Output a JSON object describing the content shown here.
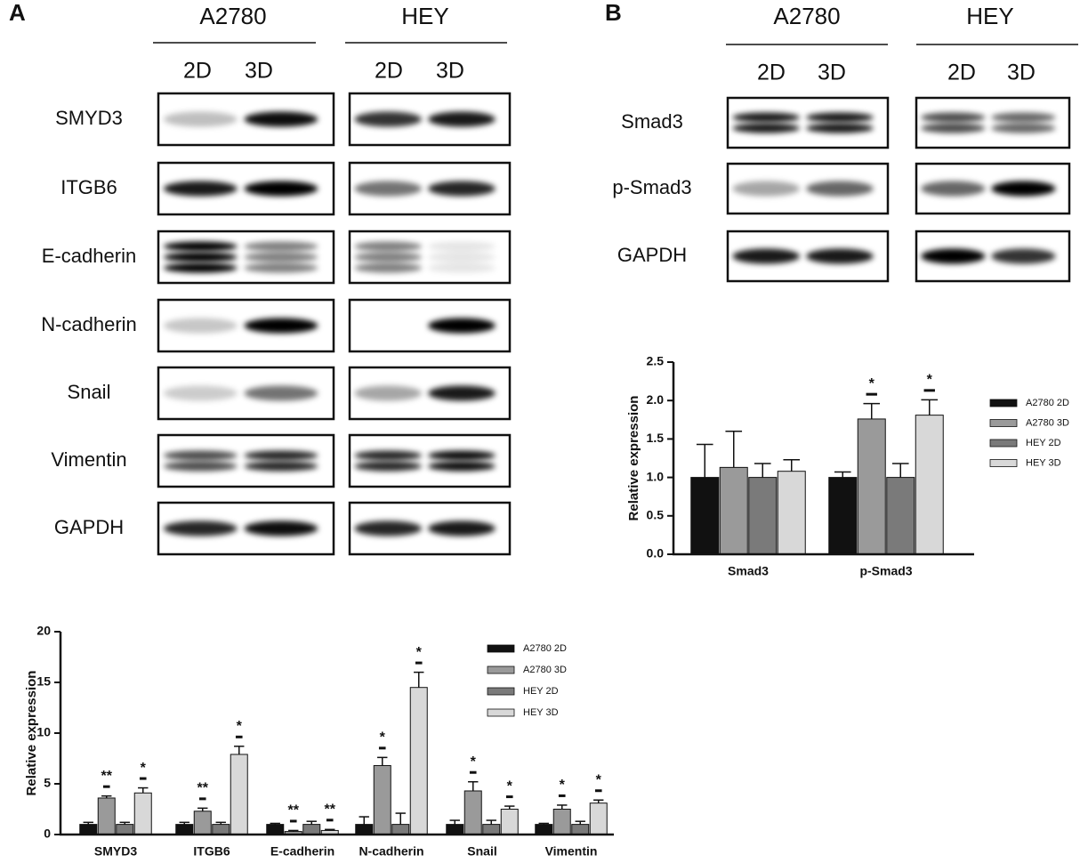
{
  "panels": {
    "A": {
      "label": "A",
      "cell_lines": [
        "A2780",
        "HEY"
      ],
      "conditions": [
        "2D",
        "3D"
      ],
      "proteins": [
        "SMYD3",
        "ITGB6",
        "E-cadherin",
        "N-cadherin",
        "Snail",
        "Vimentin",
        "GAPDH"
      ]
    },
    "B": {
      "label": "B",
      "cell_lines": [
        "A2780",
        "HEY"
      ],
      "conditions": [
        "2D",
        "3D"
      ],
      "proteins": [
        "Smad3",
        "p-Smad3",
        "GAPDH"
      ]
    }
  },
  "chart_data": [
    {
      "type": "bar",
      "y_label": "Relative expression",
      "categories": [
        "Smad3",
        "p-Smad3"
      ],
      "ylim": [
        0,
        2.5
      ],
      "yticks": [
        {
          "value": 0,
          "label": "0.0"
        },
        0.5,
        {
          "value": 1,
          "label": "1.0"
        },
        1.5,
        {
          "value": 2,
          "label": "2.0"
        },
        2.5
      ],
      "legend": "right",
      "series": [
        {
          "name": "A2780 2D",
          "color": "#111111",
          "values": [
            1,
            1
          ],
          "errors": [
            0.43,
            0.07
          ],
          "sig": [
            null,
            null
          ]
        },
        {
          "name": "A2780 3D",
          "color": "#9a9a9a",
          "values": [
            1.13,
            1.76
          ],
          "errors": [
            0.47,
            0.2
          ],
          "sig": [
            null,
            "*"
          ]
        },
        {
          "name": "HEY 2D",
          "color": "#7a7a7a",
          "values": [
            1,
            1
          ],
          "errors": [
            0.18,
            0.18
          ],
          "sig": [
            null,
            null
          ]
        },
        {
          "name": "HEY 3D",
          "color": "#d8d8d8",
          "values": [
            1.08,
            1.81
          ],
          "errors": [
            0.15,
            0.2
          ],
          "sig": [
            null,
            "*"
          ]
        }
      ]
    },
    {
      "type": "bar",
      "y_label": "Relative expression",
      "categories": [
        "SMYD3",
        "ITGB6",
        "E-cadherin",
        "N-cadherin",
        "Snail",
        "Vimentin"
      ],
      "ylim": [
        0,
        20
      ],
      "yticks": [
        0,
        5,
        10,
        15,
        20
      ],
      "legend": "right",
      "series": [
        {
          "name": "A2780 2D",
          "color": "#111111",
          "values": [
            1,
            1,
            1,
            1,
            1,
            1
          ],
          "errors": [
            0.2,
            0.2,
            0.1,
            0.75,
            0.4,
            0.1
          ],
          "sig": [
            null,
            null,
            null,
            null,
            null,
            null
          ]
        },
        {
          "name": "A2780 3D",
          "color": "#9a9a9a",
          "values": [
            3.6,
            2.3,
            0.3,
            6.8,
            4.3,
            2.5
          ],
          "errors": [
            0.2,
            0.3,
            0.1,
            0.8,
            0.9,
            0.4
          ],
          "sig": [
            "**",
            "**",
            "**",
            "*",
            "*",
            "*"
          ]
        },
        {
          "name": "HEY 2D",
          "color": "#7a7a7a",
          "values": [
            1,
            1,
            1,
            1,
            1,
            1
          ],
          "errors": [
            0.2,
            0.2,
            0.3,
            1.1,
            0.4,
            0.3
          ],
          "sig": [
            null,
            null,
            null,
            null,
            null,
            null
          ]
        },
        {
          "name": "HEY 3D",
          "color": "#d8d8d8",
          "values": [
            4.1,
            7.9,
            0.4,
            14.5,
            2.5,
            3.1
          ],
          "errors": [
            0.5,
            0.8,
            0.1,
            1.5,
            0.3,
            0.3
          ],
          "sig": [
            "*",
            "*",
            "**",
            "*",
            "*",
            "*"
          ]
        }
      ]
    }
  ]
}
